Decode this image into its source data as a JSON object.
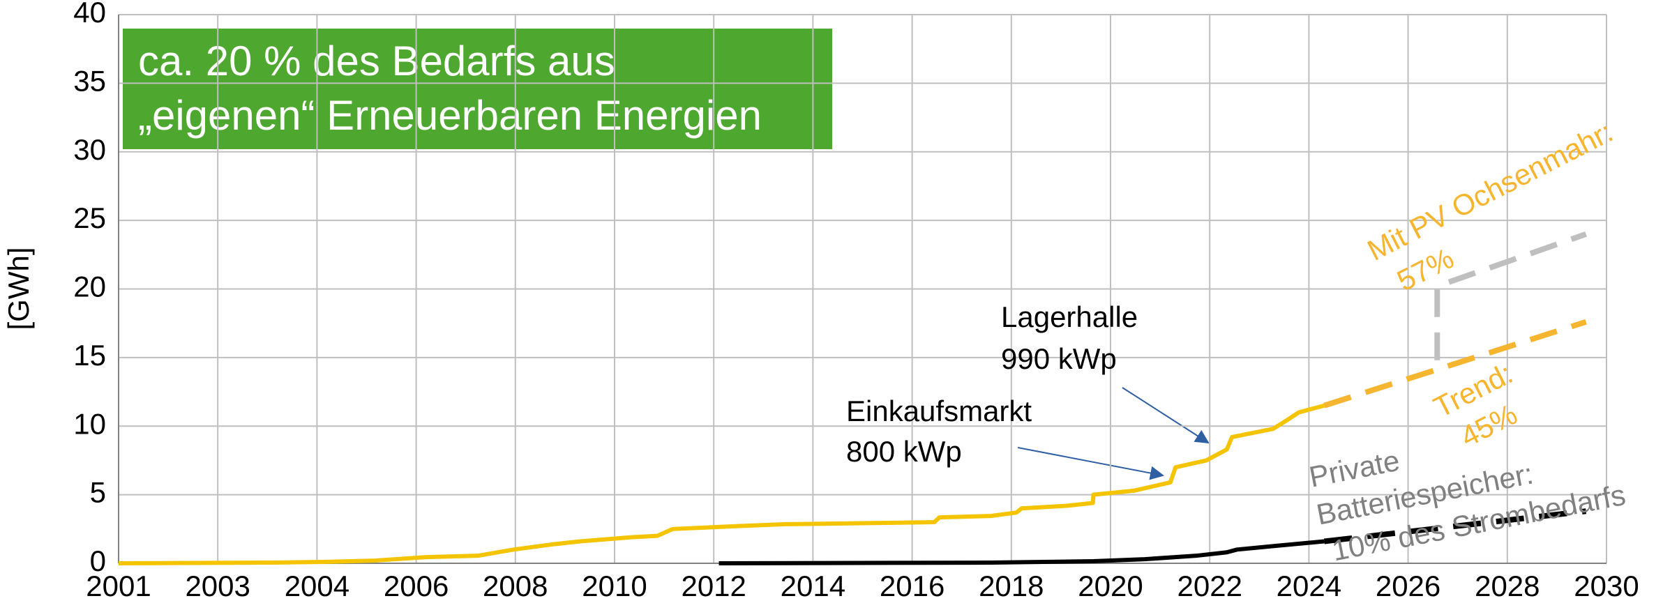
{
  "chart_data": {
    "type": "line",
    "ylabel": "[GWh]",
    "xlim": [
      2001,
      2030
    ],
    "xticks": [
      2001,
      {
        "value": 2002.933,
        "label": "2003"
      },
      {
        "value": 2004.867,
        "label": "2004"
      },
      {
        "value": 2006.8,
        "label": "2006"
      },
      {
        "value": 2008.733,
        "label": "2008"
      },
      {
        "value": 2010.667,
        "label": "2010"
      },
      {
        "value": 2012.6,
        "label": "2012"
      },
      {
        "value": 2014.533,
        "label": "2014"
      },
      {
        "value": 2016.467,
        "label": "2016"
      },
      {
        "value": 2018.4,
        "label": "2018"
      },
      {
        "value": 2020.333,
        "label": "2020"
      },
      {
        "value": 2022.267,
        "label": "2022"
      },
      {
        "value": 2024.2,
        "label": "2024"
      },
      {
        "value": 2026.133,
        "label": "2026"
      },
      {
        "value": 2028.067,
        "label": "2028"
      },
      2030
    ],
    "ylim": [
      0,
      40
    ],
    "yticks": [
      0,
      5,
      10,
      15,
      20,
      25,
      30,
      35,
      40
    ],
    "grid": true,
    "series": [
      {
        "color": "#f5c400",
        "dashed": false,
        "x": [
          2001,
          2004,
          2005,
          2006,
          2007,
          2008,
          2008.7,
          2009.5,
          2010,
          2011,
          2011.5,
          2011.8,
          2013,
          2014,
          2016,
          2016.9,
          2017,
          2018,
          2018.5,
          2018.6,
          2019.5,
          2019.99,
          2020,
          2020.8,
          2021.5,
          2021.6,
          2022.2,
          2022.6,
          2022.7,
          2023.5,
          2023.8,
          2024,
          2024.5
        ],
        "values": [
          0,
          0.05,
          0.1,
          0.2,
          0.45,
          0.55,
          1.0,
          1.4,
          1.6,
          1.9,
          2.0,
          2.5,
          2.7,
          2.85,
          2.95,
          3.0,
          3.35,
          3.45,
          3.7,
          4.0,
          4.2,
          4.4,
          5.0,
          5.3,
          5.9,
          7.0,
          7.5,
          8.3,
          9.2,
          9.8,
          10.5,
          11.0,
          11.5
        ]
      },
      {
        "color": "#f5b52e",
        "dashed": true,
        "x": [
          2024.5,
          2029.6
        ],
        "values": [
          11.5,
          17.6
        ]
      },
      {
        "color": "#bfbfbf",
        "dashed": true,
        "x": [
          2026.7,
          2026.7,
          2029.6
        ],
        "values": [
          14.8,
          20.2,
          24.0
        ]
      },
      {
        "color": "#000000",
        "dashed": false,
        "x": [
          2012.7,
          2018,
          2020,
          2021,
          2022,
          2022.6,
          2022.8,
          2023.5,
          2024.5
        ],
        "values": [
          0,
          0.05,
          0.15,
          0.3,
          0.55,
          0.8,
          1.0,
          1.25,
          1.6
        ]
      },
      {
        "color": "#000000",
        "dashed": true,
        "x": [
          2024.5,
          2029.6
        ],
        "values": [
          1.6,
          3.8
        ]
      }
    ],
    "box_text": [
      "ca. 20 % des Bedarfs aus",
      "„eigenen“ Erneuerbaren Energien"
    ],
    "annotations": [
      {
        "lines": [
          "Lagerhalle",
          "990 kWp"
        ]
      },
      {
        "lines": [
          "Einkaufsmarkt",
          "800 kWp"
        ]
      },
      {
        "lines": [
          "Mit PV Ochsenmahr:",
          "57%"
        ]
      },
      {
        "lines": [
          "Trend:",
          "45%"
        ]
      },
      {
        "lines": [
          "Private",
          "Batteriespeicher:",
          "10% des Strombedarfs"
        ]
      }
    ]
  }
}
